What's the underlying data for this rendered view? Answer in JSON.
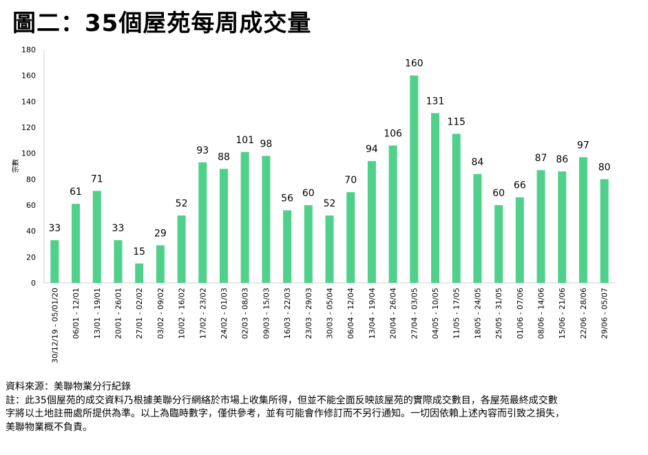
{
  "chart_data": {
    "type": "bar",
    "title": "圖二：35個屋苑每周成交量",
    "ylabel": "宗數",
    "xlabel": "",
    "ylim": [
      0,
      180
    ],
    "yticks": [
      0,
      20,
      40,
      60,
      80,
      100,
      120,
      140,
      160,
      180
    ],
    "bar_color": "#4fd18b",
    "categories": [
      "30/12/19 - 05/01/20",
      "06/01 - 12/01",
      "13/01 - 19/01",
      "20/01 - 26/01",
      "27/01 - 02/02",
      "03/02 - 09/02",
      "10/02 - 16/02",
      "17/02 - 23/02",
      "24/02 - 01/03",
      "02/03 - 08/03",
      "09/03 - 15/03",
      "16/03 - 22/03",
      "23/03 - 29/03",
      "30/03 - 05/04",
      "06/04 - 12/04",
      "13/04 - 19/04",
      "20/04 - 26/04",
      "27/04 - 03/05",
      "04/05 - 10/05",
      "11/05 - 17/05",
      "18/05 - 24/05",
      "25/05 - 31/05",
      "01/06 - 07/06",
      "08/06 - 14/06",
      "15/06 - 21/06",
      "22/06 - 28/06",
      "29/06 - 05/07"
    ],
    "values": [
      33,
      61,
      71,
      33,
      15,
      29,
      52,
      93,
      88,
      101,
      98,
      56,
      60,
      52,
      70,
      94,
      106,
      160,
      131,
      115,
      84,
      60,
      66,
      87,
      86,
      97,
      80
    ]
  },
  "footer": {
    "source": "資料來源：美聯物業分行紀錄",
    "note_lines": [
      "註：此35個屋苑的成交資料乃根據美聯分行網絡於市場上收集所得，但並不能全面反映該屋苑的實際成交數目，各屋苑最終成交數",
      "字將以土地註冊處所提供為準。以上為臨時數字，僅供參考，並有可能會作修訂而不另行通知。一切因依賴上述內容而引致之損失，",
      "美聯物業概不負責。"
    ]
  }
}
